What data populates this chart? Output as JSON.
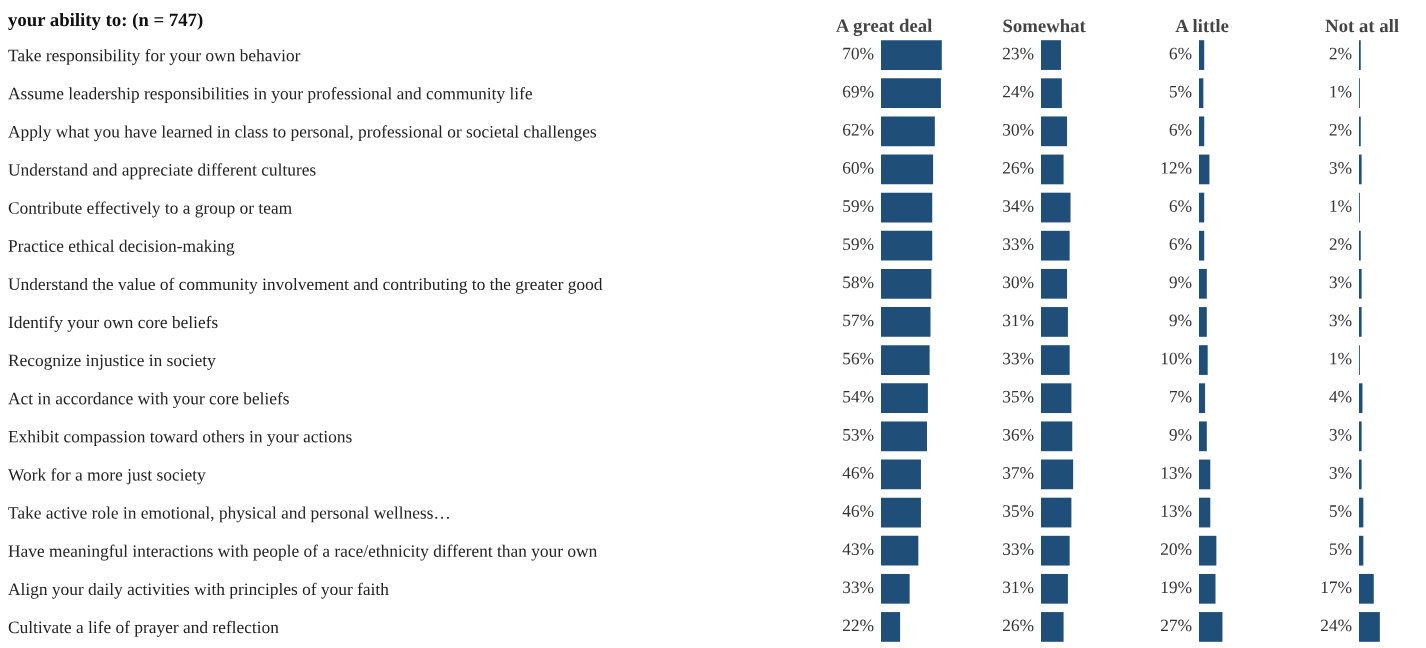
{
  "chart_data": [
    {
      "type": "bar",
      "orientation": "horizontal",
      "title": "A great deal",
      "annotations": [
        "your ability to: (n = 747)"
      ],
      "tick_labels": "y",
      "color": "#1f4e79",
      "categories": [
        "Take responsibility for your own behavior",
        "Assume leadership responsibilities in your professional and community life",
        "Apply what you have learned in class to personal, professional or societal challenges",
        "Understand and appreciate different cultures",
        "Contribute effectively to a group or team",
        "Practice ethical decision-making",
        "Understand the value of community involvement and contributing to the greater good",
        "Identify your own core beliefs",
        "Recognize injustice in society",
        "Act in accordance with your core beliefs",
        "Exhibit compassion toward others in your actions",
        "Work for a more just society",
        "Take active role in emotional, physical and personal wellness…",
        "Have meaningful interactions with people of a race/ethnicity different than your own",
        "Align your daily activities with principles of your faith",
        "Cultivate a life of prayer and reflection"
      ],
      "values": [
        70,
        69,
        62,
        60,
        59,
        59,
        58,
        57,
        56,
        54,
        53,
        46,
        46,
        43,
        33,
        22
      ],
      "value_labels": [
        "70%",
        "69%",
        "62%",
        "60%",
        "59%",
        "59%",
        "58%",
        "57%",
        "56%",
        "54%",
        "53%",
        "46%",
        "46%",
        "43%",
        "33%",
        "22%"
      ]
    },
    {
      "type": "bar",
      "orientation": "horizontal",
      "title": "Somewhat",
      "tick_labels": false,
      "color": "#1f4e79",
      "categories": [
        null,
        null,
        null,
        null,
        null,
        null,
        null,
        null,
        null,
        null,
        null,
        null,
        null,
        null,
        null,
        null
      ],
      "values": [
        23,
        24,
        30,
        26,
        34,
        33,
        30,
        31,
        33,
        35,
        36,
        37,
        35,
        33,
        31,
        26
      ],
      "value_labels": [
        "23%",
        "24%",
        "30%",
        "26%",
        "34%",
        "33%",
        "30%",
        "31%",
        "33%",
        "35%",
        "36%",
        "37%",
        "35%",
        "33%",
        "31%",
        "26%"
      ]
    },
    {
      "type": "bar",
      "orientation": "horizontal",
      "title": "A little",
      "tick_labels": false,
      "color": "#1f4e79",
      "categories": [
        null,
        null,
        null,
        null,
        null,
        null,
        null,
        null,
        null,
        null,
        null,
        null,
        null,
        null,
        null,
        null
      ],
      "values": [
        6,
        5,
        6,
        12,
        6,
        6,
        9,
        9,
        10,
        7,
        9,
        13,
        13,
        20,
        19,
        27
      ],
      "value_labels": [
        "6%",
        "5%",
        "6%",
        "12%",
        "6%",
        "6%",
        "9%",
        "9%",
        "10%",
        "7%",
        "9%",
        "13%",
        "13%",
        "20%",
        "19%",
        "27%"
      ]
    },
    {
      "type": "bar",
      "orientation": "horizontal",
      "title": "Not at all",
      "tick_labels": false,
      "color": "#1f4e79",
      "categories": [
        null,
        null,
        null,
        null,
        null,
        null,
        null,
        null,
        null,
        null,
        null,
        null,
        null,
        null,
        null,
        null
      ],
      "values": [
        2,
        1,
        2,
        3,
        1,
        2,
        3,
        3,
        1,
        4,
        3,
        3,
        5,
        5,
        17,
        24
      ],
      "value_labels": [
        "2%",
        "1%",
        "2%",
        "3%",
        "1%",
        "2%",
        "3%",
        "3%",
        "1%",
        "4%",
        "3%",
        "3%",
        "5%",
        "5%",
        "17%",
        "24%"
      ]
    }
  ]
}
